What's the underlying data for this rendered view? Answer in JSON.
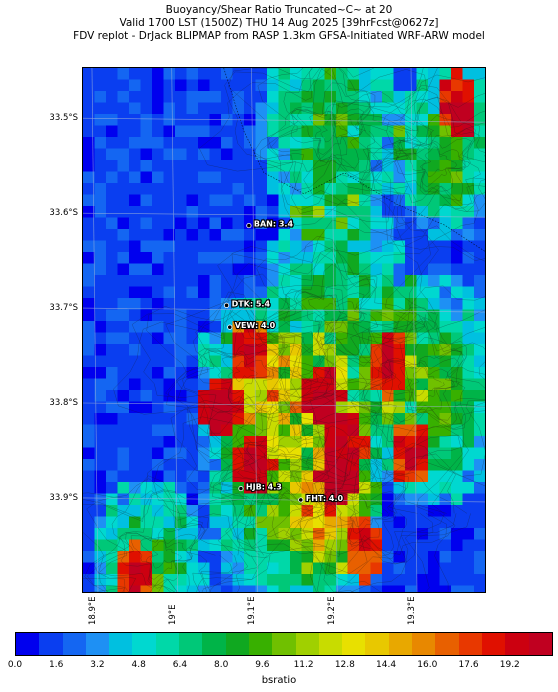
{
  "title": {
    "line1": "Buoyancy/Shear Ratio Truncated~C~    at 20",
    "line2": "Valid 1700 LST (1500Z) THU 14 Aug 2025 [39hrFcst@0627z]",
    "line3": "FDV replot - DrJack BLIPMAP from RASP 1.3km GFSA-Initiated WRF-ARW model"
  },
  "latitude_labels": [
    "33.5°S",
    "33.6°S",
    "33.7°S",
    "33.8°S",
    "33.9°S"
  ],
  "longitude_labels": [
    "18.9°E",
    "19°E",
    "19.1°E",
    "19.2°E",
    "19.3°E"
  ],
  "stations": [
    {
      "label": "BAN: 3.4",
      "lon": 19.093,
      "lat": -33.611
    },
    {
      "label": "DTK: 5.4",
      "lon": 19.065,
      "lat": -33.695
    },
    {
      "label": "VEW: 4.0",
      "lon": 19.069,
      "lat": -33.718
    },
    {
      "label": "HJB: 4.3",
      "lon": 19.083,
      "lat": -33.888
    },
    {
      "label": "FHT: 4.0",
      "lon": 19.158,
      "lat": -33.9
    }
  ],
  "colorbar": {
    "colors": [
      "#0000ee",
      "#0a3ef0",
      "#1466f2",
      "#1e90f4",
      "#00c0e0",
      "#00d8d0",
      "#00d8a8",
      "#00c878",
      "#00b448",
      "#10a820",
      "#38b000",
      "#70c000",
      "#a0d000",
      "#c8dc00",
      "#e8e000",
      "#e8c800",
      "#e8a800",
      "#e88800",
      "#e86000",
      "#e83800",
      "#e01000",
      "#cc0010",
      "#c00020"
    ],
    "ticks": [
      "0.0",
      "1.6",
      "3.2",
      "4.8",
      "6.4",
      "8.0",
      "9.6",
      "11.2",
      "12.8",
      "14.4",
      "16.0",
      "17.6",
      "19.2"
    ],
    "label": "bsratio"
  }
}
